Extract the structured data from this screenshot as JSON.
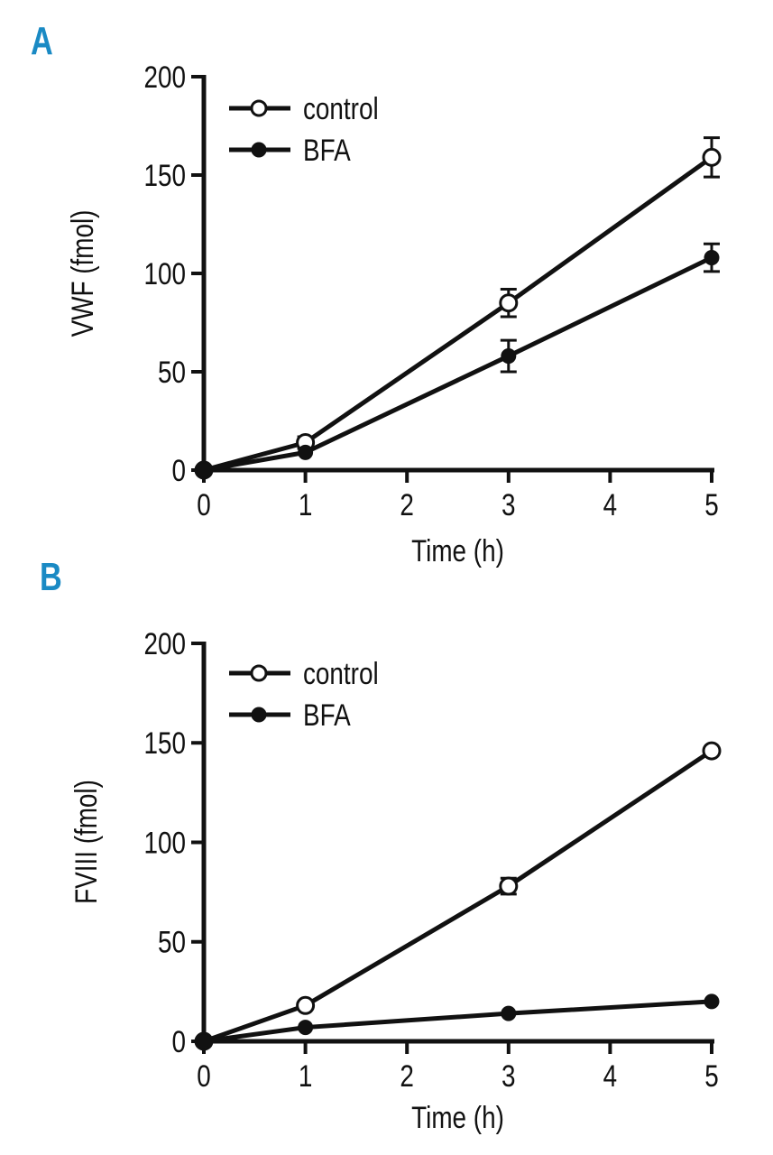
{
  "panels": [
    {
      "letter": "A"
    },
    {
      "letter": "B"
    }
  ],
  "colors": {
    "panel_label": "#1a8ac4",
    "ink": "#111111",
    "open_fill": "#ffffff"
  },
  "chart_data": [
    {
      "type": "line",
      "panel": "A",
      "title": "",
      "xlabel": "Time (h)",
      "ylabel": "VWF (fmol)",
      "x": [
        0,
        1,
        3,
        5
      ],
      "xlim": [
        0,
        5
      ],
      "ylim": [
        0,
        200
      ],
      "xticks": [
        0,
        1,
        2,
        3,
        4,
        5
      ],
      "yticks": [
        0,
        50,
        100,
        150,
        200
      ],
      "legend_position": "top-left",
      "series": [
        {
          "name": "control",
          "marker": "open-circle",
          "values": [
            0,
            14,
            85,
            159
          ],
          "errors": [
            0,
            3,
            7,
            10
          ]
        },
        {
          "name": "BFA",
          "marker": "filled-circle",
          "values": [
            0,
            9,
            58,
            108
          ],
          "errors": [
            0,
            0,
            8,
            7
          ]
        }
      ]
    },
    {
      "type": "line",
      "panel": "B",
      "title": "",
      "xlabel": "Time (h)",
      "ylabel": "FVIII (fmol)",
      "x": [
        0,
        1,
        3,
        5
      ],
      "xlim": [
        0,
        5
      ],
      "ylim": [
        0,
        200
      ],
      "xticks": [
        0,
        1,
        2,
        3,
        4,
        5
      ],
      "yticks": [
        0,
        50,
        100,
        150,
        200
      ],
      "legend_position": "top-left",
      "series": [
        {
          "name": "control",
          "marker": "open-circle",
          "values": [
            0,
            18,
            78,
            146
          ],
          "errors": [
            0,
            0,
            4,
            0
          ]
        },
        {
          "name": "BFA",
          "marker": "filled-circle",
          "values": [
            0,
            7,
            14,
            20
          ],
          "errors": [
            0,
            0,
            0,
            0
          ]
        }
      ]
    }
  ]
}
